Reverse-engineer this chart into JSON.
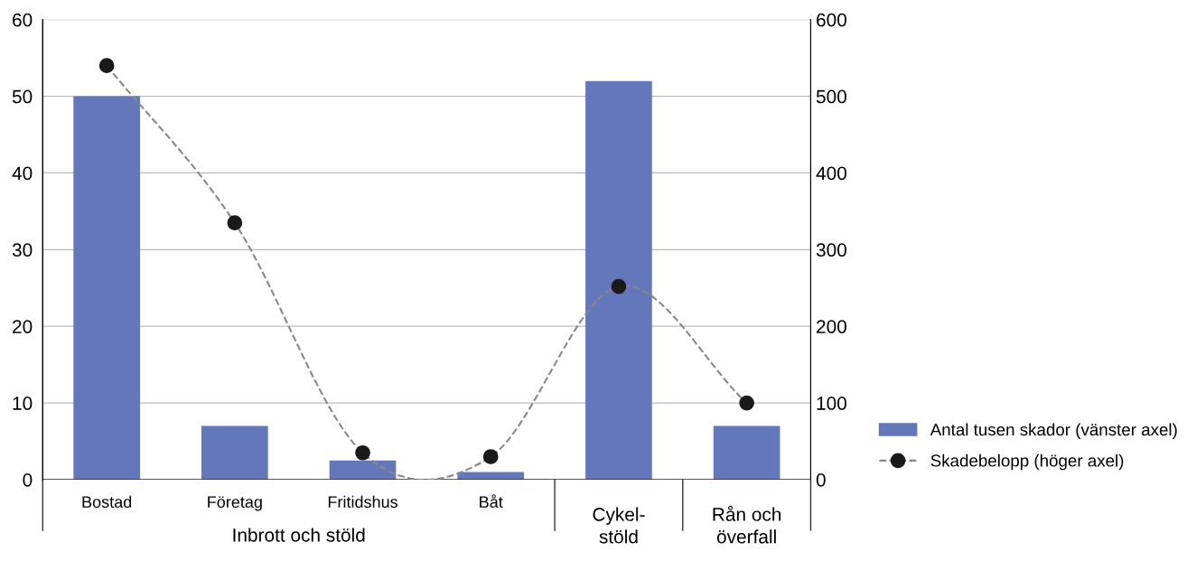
{
  "chart_data": {
    "type": "bar",
    "categories": [
      "Bostad",
      "Företag",
      "Fritidshus",
      "Båt",
      "Cykel-\nstöld",
      "Rån och\növerfall"
    ],
    "series": [
      {
        "name": "Antal tusen skador (vänster axel)",
        "color": "#6477bb",
        "values": [
          50,
          7,
          2.5,
          1,
          52,
          7
        ]
      },
      {
        "name": "Skadebelopp (höger axel)",
        "type": "line",
        "axis": "y2",
        "color": "#1a1a1a",
        "marker": "circle",
        "line_style": "dashed",
        "values": [
          540,
          335,
          35,
          30,
          252,
          100
        ]
      }
    ],
    "ylim": [
      0,
      60
    ],
    "yticks": [
      0,
      10,
      20,
      30,
      40,
      50,
      60
    ],
    "y2lim": [
      0,
      600
    ],
    "y2ticks": [
      0,
      100,
      200,
      300,
      400,
      500,
      600
    ],
    "grid": "y",
    "legend": "bottom right",
    "annotations": [
      "Inbrott och stöld"
    ]
  }
}
